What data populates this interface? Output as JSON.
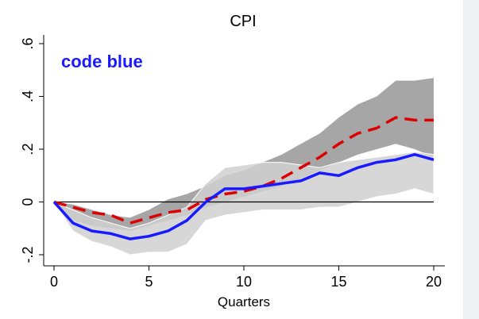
{
  "chart_data": {
    "type": "line",
    "title": "CPI",
    "xlabel": "Quarters",
    "ylabel": "",
    "annotation": "code blue",
    "x": [
      0,
      1,
      2,
      3,
      4,
      5,
      6,
      7,
      8,
      9,
      10,
      11,
      12,
      13,
      14,
      15,
      16,
      17,
      18,
      19,
      20
    ],
    "xlim": [
      0,
      20
    ],
    "ylim": [
      -0.2,
      0.6
    ],
    "xticks": [
      0,
      5,
      10,
      15,
      20
    ],
    "xtick_labels": [
      "0",
      "5",
      "10",
      "15",
      "20"
    ],
    "yticks": [
      -0.2,
      0,
      0.2,
      0.4,
      0.6
    ],
    "ytick_labels": [
      "-.2",
      "0",
      ".2",
      ".4",
      ".6"
    ],
    "zero_line": 0,
    "grid": false,
    "series": [
      {
        "role": "dark-band",
        "color": "#a6a6a6",
        "upper": [
          0,
          -0.01,
          -0.03,
          -0.05,
          -0.06,
          -0.03,
          0.01,
          0.03,
          0.06,
          0.1,
          0.12,
          0.15,
          0.18,
          0.22,
          0.26,
          0.32,
          0.37,
          0.4,
          0.46,
          0.46,
          0.47
        ],
        "lower": [
          0,
          -0.07,
          -0.09,
          -0.1,
          -0.11,
          -0.09,
          -0.07,
          -0.05,
          -0.02,
          0.0,
          0.02,
          0.04,
          0.06,
          0.09,
          0.12,
          0.15,
          0.18,
          0.2,
          0.22,
          0.2,
          0.17
        ]
      },
      {
        "role": "light-band",
        "color": "#d0d0d0",
        "upper": [
          0,
          -0.03,
          -0.06,
          -0.08,
          -0.1,
          -0.08,
          -0.05,
          -0.02,
          0.07,
          0.13,
          0.14,
          0.15,
          0.15,
          0.14,
          0.13,
          0.15,
          0.16,
          0.17,
          0.18,
          0.19,
          0.18
        ],
        "lower": [
          0,
          -0.11,
          -0.15,
          -0.17,
          -0.2,
          -0.19,
          -0.19,
          -0.16,
          -0.07,
          -0.05,
          -0.04,
          -0.03,
          -0.03,
          -0.03,
          -0.02,
          -0.02,
          0.0,
          0.02,
          0.03,
          0.05,
          0.03
        ]
      },
      {
        "role": "red-dashed",
        "color": "#dd0000",
        "values": [
          0,
          -0.02,
          -0.04,
          -0.05,
          -0.08,
          -0.06,
          -0.04,
          -0.03,
          0.01,
          0.03,
          0.04,
          0.06,
          0.09,
          0.13,
          0.17,
          0.22,
          0.26,
          0.28,
          0.32,
          0.31,
          0.31
        ]
      },
      {
        "role": "blue-solid",
        "color": "#1a1aff",
        "values": [
          0,
          -0.08,
          -0.11,
          -0.12,
          -0.14,
          -0.13,
          -0.11,
          -0.07,
          0.0,
          0.05,
          0.05,
          0.06,
          0.07,
          0.08,
          0.11,
          0.1,
          0.13,
          0.15,
          0.16,
          0.18,
          0.16
        ]
      }
    ]
  }
}
